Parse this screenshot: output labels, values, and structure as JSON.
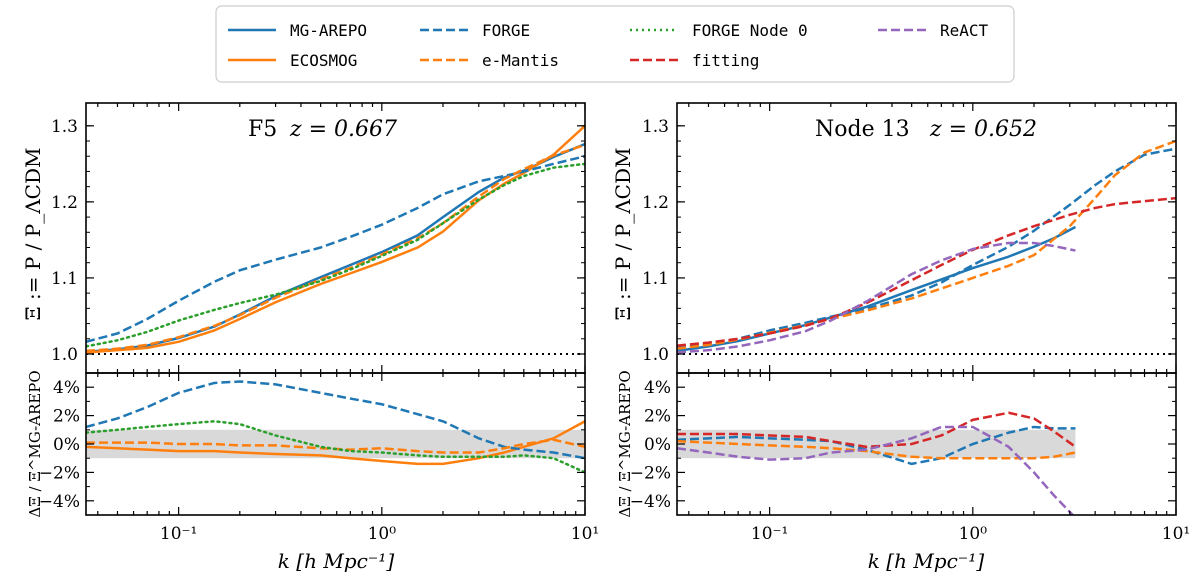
{
  "legend": {
    "entries": [
      {
        "id": "mgarepo",
        "label": "MG-AREPO",
        "mono": true
      },
      {
        "id": "ecosmog",
        "label": "ECOSMOG",
        "mono": true
      },
      {
        "id": "forge",
        "label": "FORGE",
        "mono": true
      },
      {
        "id": "emantis",
        "label": "e-Mantis",
        "mono": true
      },
      {
        "id": "forgenode0",
        "label": "FORGE Node 0",
        "mono": true
      },
      {
        "id": "fitting",
        "label": "fitting",
        "mono": true
      },
      {
        "id": "react",
        "label": "ReACT",
        "mono": true
      }
    ]
  },
  "colors": {
    "blue": "#1f77b4",
    "orange": "#ff7f0e",
    "green": "#2ca02c",
    "red": "#d62728",
    "purple": "#9467bd",
    "band": "#d9d9d9"
  },
  "chart_data": [
    {
      "type": "line",
      "panel": "left",
      "title_model": "F5",
      "title_z": "z = 0.667",
      "xlabel": "k [h Mpc⁻¹]",
      "ylabel_top": "Ξ := P / P_ΛCDM",
      "ylabel_bottom": "ΔΞ / Ξ^MG-AREPO",
      "xscale": "log",
      "xlim": [
        0.035,
        10
      ],
      "ylim_top": [
        0.975,
        1.33
      ],
      "ylim_bottom": [
        -5,
        5
      ],
      "xticks": [
        0.1,
        1,
        10
      ],
      "xtick_labels": [
        "10⁻¹",
        "10⁰",
        "10¹"
      ],
      "yticks_top": [
        1.0,
        1.1,
        1.2,
        1.3
      ],
      "ytick_labels_top": [
        "1.0",
        "1.1",
        "1.2",
        "1.3"
      ],
      "yticks_bottom": [
        -4,
        -2,
        0,
        2,
        4
      ],
      "ytick_labels_bottom": [
        "−4%",
        "−2%",
        "0%",
        "2%",
        "4%"
      ],
      "band": [
        -1,
        1
      ],
      "reference_line": 1.0,
      "top_series": [
        {
          "name": "MG-AREPO",
          "color": "blue",
          "dash": "solid",
          "x": [
            0.035,
            0.05,
            0.07,
            0.1,
            0.15,
            0.2,
            0.3,
            0.5,
            0.7,
            1.0,
            1.5,
            2.0,
            3.0,
            4.0,
            5.0,
            7.0,
            10.0
          ],
          "y": [
            1.003,
            1.006,
            1.011,
            1.021,
            1.036,
            1.052,
            1.076,
            1.101,
            1.117,
            1.134,
            1.156,
            1.18,
            1.213,
            1.232,
            1.241,
            1.259,
            1.276
          ]
        },
        {
          "name": "ECOSMOG",
          "color": "orange",
          "dash": "solid",
          "x": [
            0.035,
            0.05,
            0.07,
            0.1,
            0.15,
            0.2,
            0.3,
            0.5,
            0.7,
            1.0,
            1.5,
            2.0,
            3.0,
            4.0,
            5.0,
            7.0,
            10.0
          ],
          "y": [
            1.002,
            1.005,
            1.008,
            1.016,
            1.031,
            1.046,
            1.068,
            1.092,
            1.106,
            1.121,
            1.14,
            1.161,
            1.202,
            1.224,
            1.238,
            1.262,
            1.3
          ]
        },
        {
          "name": "FORGE",
          "color": "blue",
          "dash": "dashed",
          "x": [
            0.035,
            0.05,
            0.07,
            0.1,
            0.15,
            0.2,
            0.3,
            0.5,
            0.7,
            1.0,
            1.5,
            2.0,
            3.0,
            4.0,
            5.0,
            7.0,
            10.0
          ],
          "y": [
            1.016,
            1.027,
            1.046,
            1.07,
            1.095,
            1.11,
            1.124,
            1.14,
            1.154,
            1.17,
            1.192,
            1.21,
            1.227,
            1.234,
            1.24,
            1.25,
            1.26
          ]
        },
        {
          "name": "e-Mantis",
          "color": "orange",
          "dash": "dashed",
          "x": [
            0.035,
            0.05,
            0.07,
            0.1,
            0.15,
            0.2,
            0.3,
            0.5,
            0.7,
            1.0,
            1.5,
            2.0,
            3.0,
            4.0,
            5.0,
            7.0,
            10.0
          ],
          "y": [
            1.004,
            1.007,
            1.012,
            1.022,
            1.037,
            1.051,
            1.074,
            1.098,
            1.113,
            1.131,
            1.152,
            1.172,
            1.207,
            1.23,
            1.243,
            1.261,
            1.275
          ]
        },
        {
          "name": "FORGE Node 0",
          "color": "green",
          "dash": "dotted",
          "x": [
            0.035,
            0.05,
            0.07,
            0.1,
            0.15,
            0.2,
            0.3,
            0.5,
            0.7,
            1.0,
            1.5,
            2.0,
            3.0,
            4.0,
            5.0,
            7.0,
            10.0
          ],
          "y": [
            1.01,
            1.018,
            1.029,
            1.044,
            1.058,
            1.067,
            1.078,
            1.096,
            1.111,
            1.129,
            1.15,
            1.172,
            1.203,
            1.222,
            1.234,
            1.245,
            1.25
          ]
        }
      ],
      "bottom_series": [
        {
          "name": "ECOSMOG",
          "color": "orange",
          "dash": "solid",
          "x": [
            0.035,
            0.05,
            0.07,
            0.1,
            0.15,
            0.2,
            0.3,
            0.5,
            0.7,
            1.0,
            1.5,
            2.0,
            3.0,
            4.0,
            5.0,
            7.0,
            10.0
          ],
          "y": [
            -0.2,
            -0.3,
            -0.4,
            -0.5,
            -0.5,
            -0.6,
            -0.7,
            -0.8,
            -1.0,
            -1.2,
            -1.4,
            -1.4,
            -1.0,
            -0.6,
            -0.2,
            0.4,
            1.6
          ]
        },
        {
          "name": "FORGE",
          "color": "blue",
          "dash": "dashed",
          "x": [
            0.035,
            0.05,
            0.07,
            0.1,
            0.15,
            0.2,
            0.3,
            0.5,
            0.7,
            1.0,
            1.5,
            2.0,
            3.0,
            4.0,
            5.0,
            7.0,
            10.0
          ],
          "y": [
            1.2,
            1.8,
            2.6,
            3.6,
            4.3,
            4.4,
            4.2,
            3.6,
            3.2,
            2.8,
            2.1,
            1.6,
            0.4,
            -0.2,
            -0.4,
            -0.6,
            -1.0
          ]
        },
        {
          "name": "e-Mantis",
          "color": "orange",
          "dash": "dashed",
          "x": [
            0.035,
            0.05,
            0.07,
            0.1,
            0.15,
            0.2,
            0.3,
            0.5,
            0.7,
            1.0,
            1.5,
            2.0,
            3.0,
            4.0,
            5.0,
            7.0,
            10.0
          ],
          "y": [
            0.1,
            0.1,
            0.1,
            0.0,
            0.0,
            -0.1,
            -0.1,
            -0.3,
            -0.4,
            -0.3,
            -0.5,
            -0.6,
            -0.6,
            -0.3,
            0.0,
            0.3,
            -0.2
          ]
        },
        {
          "name": "FORGE Node 0",
          "color": "green",
          "dash": "dotted",
          "x": [
            0.035,
            0.05,
            0.07,
            0.1,
            0.15,
            0.2,
            0.3,
            0.5,
            0.7,
            1.0,
            1.5,
            2.0,
            3.0,
            4.0,
            5.0,
            7.0,
            10.0
          ],
          "y": [
            0.8,
            1.0,
            1.2,
            1.4,
            1.6,
            1.4,
            0.6,
            -0.2,
            -0.5,
            -0.6,
            -0.8,
            -0.9,
            -0.9,
            -0.9,
            -0.8,
            -1.0,
            -2.0
          ]
        }
      ]
    },
    {
      "type": "line",
      "panel": "right",
      "title_model": "Node 13",
      "title_z": "z = 0.652",
      "xlabel": "k [h Mpc⁻¹]",
      "ylabel_top": "Ξ := P / P_ΛCDM",
      "ylabel_bottom": "ΔΞ / Ξ^MG-AREPO",
      "xscale": "log",
      "xlim": [
        0.035,
        10
      ],
      "ylim_top": [
        0.975,
        1.33
      ],
      "ylim_bottom": [
        -5,
        5
      ],
      "xticks": [
        0.1,
        1,
        10
      ],
      "xtick_labels": [
        "10⁻¹",
        "10⁰",
        "10¹"
      ],
      "yticks_top": [
        1.0,
        1.1,
        1.2,
        1.3
      ],
      "ytick_labels_top": [
        "1.0",
        "1.1",
        "1.2",
        "1.3"
      ],
      "yticks_bottom": [
        -4,
        -2,
        0,
        2,
        4
      ],
      "ytick_labels_bottom": [
        "−4%",
        "−2%",
        "0%",
        "2%",
        "4%"
      ],
      "band": [
        -1,
        1
      ],
      "band_xmax": 3.2,
      "reference_line": 1.0,
      "top_series": [
        {
          "name": "MG-AREPO",
          "color": "blue",
          "dash": "solid",
          "x": [
            0.035,
            0.05,
            0.07,
            0.1,
            0.15,
            0.2,
            0.3,
            0.5,
            0.7,
            1.0,
            1.5,
            2.0,
            2.5,
            3.2
          ],
          "y": [
            1.004,
            1.01,
            1.017,
            1.027,
            1.038,
            1.048,
            1.062,
            1.084,
            1.098,
            1.113,
            1.128,
            1.141,
            1.152,
            1.167
          ]
        },
        {
          "name": "FORGE",
          "color": "blue",
          "dash": "dashed",
          "x": [
            0.035,
            0.05,
            0.07,
            0.1,
            0.15,
            0.2,
            0.3,
            0.5,
            0.7,
            1.0,
            1.5,
            2.0,
            3.0,
            4.0,
            5.0,
            7.0,
            10.0
          ],
          "y": [
            1.008,
            1.013,
            1.02,
            1.031,
            1.041,
            1.049,
            1.059,
            1.077,
            1.094,
            1.117,
            1.141,
            1.162,
            1.196,
            1.222,
            1.24,
            1.262,
            1.27
          ]
        },
        {
          "name": "e-Mantis",
          "color": "orange",
          "dash": "dashed",
          "x": [
            0.035,
            0.05,
            0.07,
            0.1,
            0.15,
            0.2,
            0.3,
            0.5,
            0.7,
            1.0,
            1.5,
            2.0,
            3.0,
            4.0,
            5.0,
            7.0,
            10.0
          ],
          "y": [
            1.007,
            1.012,
            1.019,
            1.028,
            1.038,
            1.046,
            1.057,
            1.073,
            1.086,
            1.1,
            1.116,
            1.13,
            1.168,
            1.205,
            1.235,
            1.265,
            1.28
          ]
        },
        {
          "name": "fitting",
          "color": "red",
          "dash": "dashed",
          "x": [
            0.035,
            0.05,
            0.07,
            0.1,
            0.15,
            0.2,
            0.3,
            0.5,
            0.7,
            1.0,
            1.5,
            2.0,
            3.0,
            4.0,
            5.0,
            7.0,
            10.0
          ],
          "y": [
            1.011,
            1.015,
            1.02,
            1.027,
            1.037,
            1.047,
            1.067,
            1.097,
            1.117,
            1.137,
            1.156,
            1.168,
            1.183,
            1.192,
            1.197,
            1.201,
            1.205
          ]
        },
        {
          "name": "ReACT",
          "color": "purple",
          "dash": "dashed",
          "x": [
            0.035,
            0.05,
            0.07,
            0.1,
            0.15,
            0.2,
            0.3,
            0.5,
            0.7,
            1.0,
            1.5,
            2.0,
            2.5,
            3.2
          ],
          "y": [
            1.002,
            1.005,
            1.01,
            1.018,
            1.03,
            1.044,
            1.069,
            1.105,
            1.123,
            1.138,
            1.146,
            1.146,
            1.142,
            1.136
          ]
        }
      ],
      "bottom_series": [
        {
          "name": "FORGE",
          "color": "blue",
          "dash": "dashed",
          "x": [
            0.035,
            0.05,
            0.07,
            0.1,
            0.15,
            0.2,
            0.3,
            0.5,
            0.7,
            1.0,
            1.5,
            2.0,
            2.5,
            3.2
          ],
          "y": [
            0.3,
            0.4,
            0.5,
            0.4,
            0.3,
            0.2,
            -0.4,
            -1.4,
            -1.0,
            0.0,
            0.8,
            1.2,
            1.1,
            1.1
          ]
        },
        {
          "name": "e-Mantis",
          "color": "orange",
          "dash": "dashed",
          "x": [
            0.035,
            0.05,
            0.07,
            0.1,
            0.15,
            0.2,
            0.3,
            0.5,
            0.7,
            1.0,
            1.5,
            2.0,
            2.5,
            3.2
          ],
          "y": [
            0.2,
            0.1,
            0.0,
            -0.1,
            -0.2,
            -0.3,
            -0.5,
            -0.9,
            -1.0,
            -1.0,
            -1.0,
            -1.0,
            -0.9,
            -0.6
          ]
        },
        {
          "name": "fitting",
          "color": "red",
          "dash": "dashed",
          "x": [
            0.035,
            0.05,
            0.07,
            0.1,
            0.15,
            0.2,
            0.3,
            0.5,
            0.7,
            1.0,
            1.5,
            2.0,
            2.5,
            3.2
          ],
          "y": [
            0.7,
            0.7,
            0.7,
            0.6,
            0.5,
            0.2,
            -0.2,
            0.0,
            0.6,
            1.7,
            2.2,
            1.8,
            0.9,
            -0.2
          ]
        },
        {
          "name": "ReACT",
          "color": "purple",
          "dash": "dashed",
          "x": [
            0.035,
            0.05,
            0.07,
            0.1,
            0.15,
            0.2,
            0.3,
            0.5,
            0.7,
            1.0,
            1.5,
            2.0,
            2.5,
            3.2
          ],
          "y": [
            -0.3,
            -0.6,
            -0.9,
            -1.1,
            -1.0,
            -0.6,
            -0.4,
            0.4,
            1.2,
            1.2,
            -0.2,
            -2.0,
            -3.6,
            -5.2
          ]
        }
      ]
    }
  ]
}
